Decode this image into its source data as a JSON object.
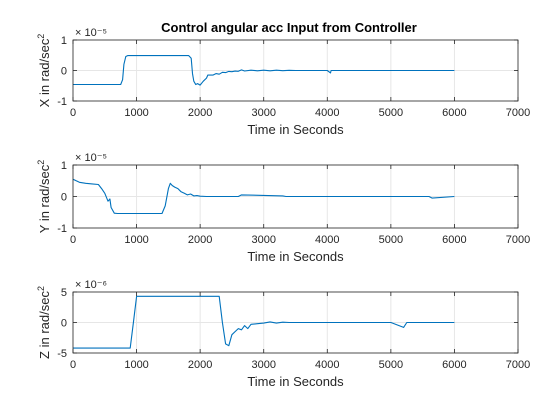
{
  "figure": {
    "title": "Control angular acc Input from Controller"
  },
  "colors": {
    "series": "#0072bd",
    "axis": "#262626",
    "grid": "#e6e6e6"
  },
  "chart_data": [
    {
      "type": "line",
      "title": "Control angular acc Input from Controller",
      "xlabel": "Time in Seconds",
      "ylabel": "X in rad/sec^2",
      "xlim": [
        0,
        7000
      ],
      "ylim": [
        -1e-05,
        1e-05
      ],
      "xticks": [
        0,
        1000,
        2000,
        3000,
        4000,
        5000,
        6000,
        7000
      ],
      "xtick_labels": [
        "0",
        "1000",
        "2000",
        "3000",
        "4000",
        "5000",
        "6000",
        "7000"
      ],
      "yticks": [
        -1e-05,
        0,
        1e-05
      ],
      "ytick_labels": [
        "-1",
        "0",
        "1"
      ],
      "exponent_label": "× 10⁻⁵",
      "grid": true,
      "series": [
        {
          "x": [
            0,
            750,
            780,
            800,
            830,
            860,
            1700,
            1820,
            1860,
            1880,
            1900,
            1930,
            1960,
            2000,
            2050,
            2100,
            2120,
            2200,
            2250,
            2300,
            2350,
            2400,
            2450,
            2500,
            2550,
            2600,
            2650,
            2700,
            2800,
            2900,
            3000,
            3100,
            3200,
            3300,
            3400,
            3500,
            4000,
            4050,
            4060,
            4100,
            5000,
            6000
          ],
          "y": [
            -4.6e-06,
            -4.6e-06,
            -3e-06,
            2e-06,
            4.6e-06,
            4.9e-06,
            4.9e-06,
            4.9e-06,
            4e-06,
            -1e-06,
            -3.5e-06,
            -4.6e-06,
            -4.3e-06,
            -4.8e-06,
            -3.5e-06,
            -2.5e-06,
            -1.5e-06,
            -1.5e-06,
            -1e-06,
            -1.2e-06,
            -6e-07,
            -7e-07,
            -3e-07,
            -4e-07,
            -2e-07,
            -2.5e-07,
            2e-07,
            -1.5e-07,
            1e-07,
            -1e-07,
            1e-07,
            -1e-07,
            1e-07,
            -5e-08,
            5e-08,
            0,
            0,
            -8e-07,
            0,
            0,
            0,
            0
          ]
        }
      ]
    },
    {
      "type": "line",
      "xlabel": "Time in Seconds",
      "ylabel": "Y in rad/sec^2",
      "xlim": [
        0,
        7000
      ],
      "ylim": [
        -1e-05,
        1e-05
      ],
      "xticks": [
        0,
        1000,
        2000,
        3000,
        4000,
        5000,
        6000,
        7000
      ],
      "xtick_labels": [
        "0",
        "1000",
        "2000",
        "3000",
        "4000",
        "5000",
        "6000",
        "7000"
      ],
      "yticks": [
        -1e-05,
        0,
        1e-05
      ],
      "ytick_labels": [
        "-1",
        "0",
        "1"
      ],
      "exponent_label": "× 10⁻⁵",
      "grid": true,
      "series": [
        {
          "x": [
            0,
            50,
            100,
            200,
            300,
            400,
            450,
            500,
            550,
            580,
            600,
            650,
            700,
            1400,
            1450,
            1500,
            1530,
            1560,
            1600,
            1650,
            1700,
            1750,
            1800,
            1850,
            1900,
            1950,
            2000,
            2100,
            2600,
            2650,
            3300,
            3350,
            5000,
            5600,
            5650,
            6000
          ],
          "y": [
            5.5e-06,
            5e-06,
            4.5e-06,
            4.2e-06,
            4e-06,
            3.8e-06,
            2.5e-06,
            1e-06,
            -1.5e-06,
            -8e-07,
            -3.5e-06,
            -5.3e-06,
            -5.4e-06,
            -5.4e-06,
            -3e-06,
            2.5e-06,
            4.2e-06,
            3.5e-06,
            3e-06,
            2.5e-06,
            1.5e-06,
            1e-06,
            5e-07,
            8e-07,
            2e-07,
            3e-07,
            1e-07,
            0,
            0,
            5e-07,
            2e-07,
            0,
            0,
            0,
            -5e-07,
            0
          ]
        }
      ]
    },
    {
      "type": "line",
      "xlabel": "Time in Seconds",
      "ylabel": "Z in rad/sec^2",
      "xlim": [
        0,
        7000
      ],
      "ylim": [
        -5e-06,
        5e-06
      ],
      "xticks": [
        0,
        1000,
        2000,
        3000,
        4000,
        5000,
        6000,
        7000
      ],
      "xtick_labels": [
        "0",
        "1000",
        "2000",
        "3000",
        "4000",
        "5000",
        "6000",
        "7000"
      ],
      "yticks": [
        -5e-06,
        0,
        5e-06
      ],
      "ytick_labels": [
        "-5",
        "0",
        "5"
      ],
      "exponent_label": "× 10⁻⁶",
      "grid": true,
      "series": [
        {
          "x": [
            0,
            900,
            950,
            1000,
            2300,
            2350,
            2400,
            2450,
            2500,
            2550,
            2600,
            2650,
            2700,
            2750,
            2800,
            2900,
            3000,
            3100,
            3200,
            3300,
            3400,
            4000,
            4500,
            5000,
            5200,
            5250,
            6000
          ],
          "y": [
            -4.2e-06,
            -4.2e-06,
            0,
            4.3e-06,
            4.3e-06,
            0,
            -3.5e-06,
            -3.8e-06,
            -2e-06,
            -1.5e-06,
            -1e-06,
            -1.2e-06,
            -5e-07,
            -1e-06,
            -3e-07,
            -2e-07,
            -1e-07,
            1e-07,
            -1e-07,
            5e-08,
            0,
            0,
            0,
            0,
            -8e-07,
            0,
            0
          ]
        }
      ]
    }
  ]
}
